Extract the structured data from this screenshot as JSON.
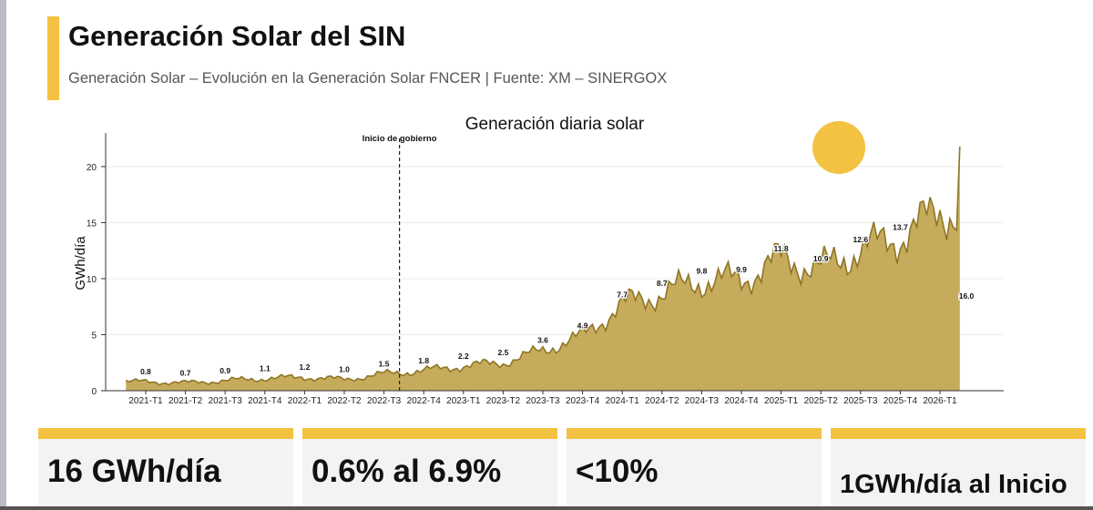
{
  "header": {
    "title": "Generación Solar del SIN",
    "subtitle": "Generación Solar – Evolución en la Generación Solar FNCER | Fuente: XM – SINERGOX"
  },
  "colors": {
    "accent": "#f4c242",
    "area_fill": "#c7ab5d",
    "area_line": "#8f7625",
    "sun": "#f4c242"
  },
  "chart_data": {
    "type": "area",
    "title": "Generación diaria solar",
    "xlabel": "",
    "ylabel": "GWh/día",
    "ylim": [
      0,
      23
    ],
    "yticks": [
      0,
      5,
      10,
      15,
      20
    ],
    "grid": "horizontal",
    "categories": [
      "2021-T1",
      "2021-T2",
      "2021-T3",
      "2021-T4",
      "2022-T1",
      "2022-T2",
      "2022-T3",
      "2022-T4",
      "2023-T1",
      "2023-T2",
      "2023-T3",
      "2023-T4",
      "2024-T1",
      "2024-T2",
      "2024-T3",
      "2024-T4",
      "2025-T1",
      "2025-T2",
      "2025-T3",
      "2025-T4",
      "2026-T1"
    ],
    "quarter_labels": [
      "0.8",
      "0.7",
      "0.9",
      "1.1",
      "1.2",
      "1.0",
      "1.5",
      "1.8",
      "2.2",
      "2.5",
      "3.6",
      "4.9",
      "7.7",
      "8.7",
      "9.8",
      "9.9",
      "11.8",
      "10.9",
      "12.6",
      "13.7",
      "16.0"
    ],
    "quarter_values": [
      0.8,
      0.7,
      0.9,
      1.1,
      1.2,
      1.0,
      1.5,
      1.8,
      2.2,
      2.5,
      3.6,
      4.9,
      7.7,
      8.7,
      9.8,
      9.9,
      11.8,
      10.9,
      12.6,
      13.7,
      16.0
    ],
    "annotation": {
      "text": "Inicio de gobierno",
      "x": "2022-T3"
    }
  },
  "cards": [
    {
      "value": "16 GWh/día"
    },
    {
      "value": "0.6% al 6.9%"
    },
    {
      "value": "<10%"
    },
    {
      "value": "1GWh/día al Inicio"
    }
  ]
}
